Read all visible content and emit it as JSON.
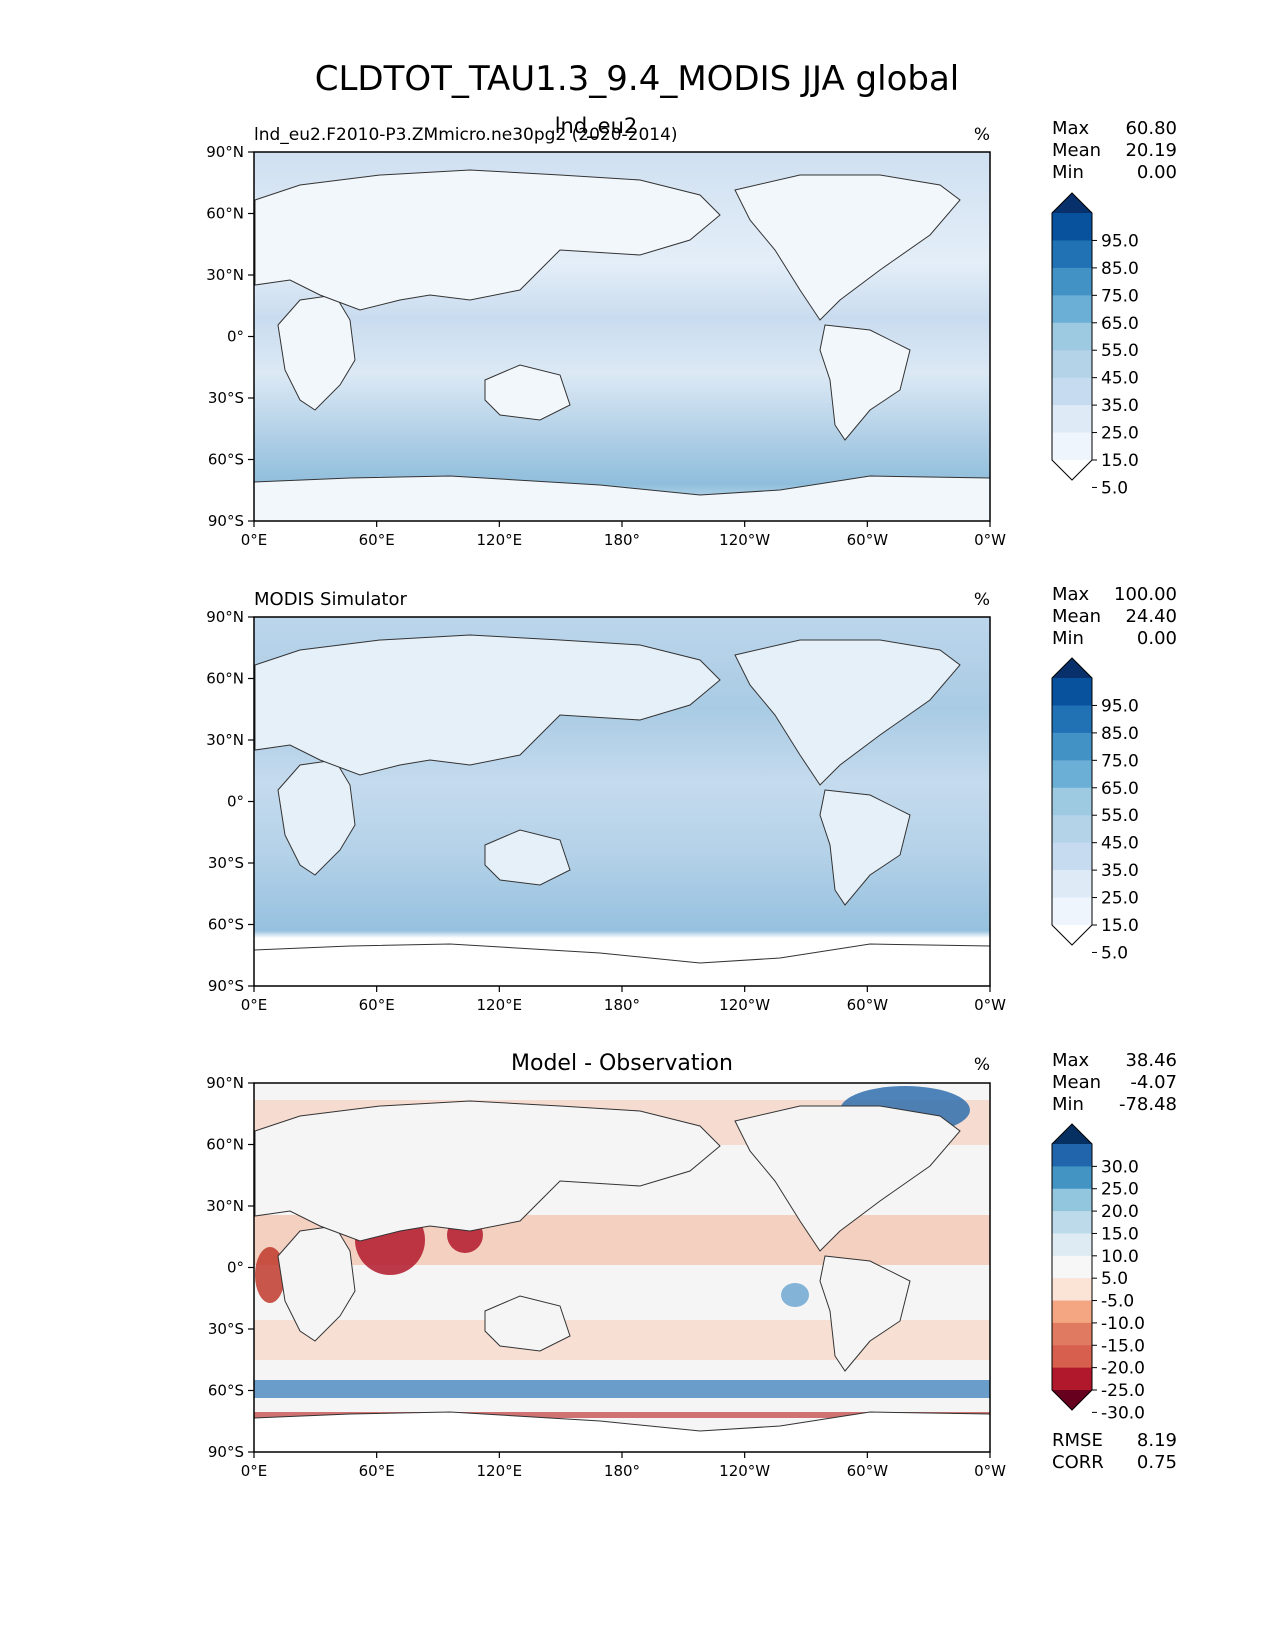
{
  "title": "CLDTOT_TAU1.3_9.4_MODIS JJA global",
  "colors": {
    "ocean_fill_light": "#eef4fa",
    "land_fill": "#f7fbff",
    "coast_stroke": "#333333",
    "diff_background": "#f5f5f5"
  },
  "chart_data": [
    {
      "type": "heatmap",
      "panel": "test",
      "title_center": "lnd_eu2",
      "title_left": "lnd_eu2.F2010-P3.ZMmicro.ne30pg2 (2020-2014)",
      "units": "%",
      "stats": [
        {
          "label": "Max",
          "value": "60.80"
        },
        {
          "label": "Mean",
          "value": "20.19"
        },
        {
          "label": "Min",
          "value": "0.00"
        }
      ],
      "x_ticks": [
        "0°E",
        "60°E",
        "120°E",
        "180°",
        "120°W",
        "60°W",
        "0°W"
      ],
      "y_ticks": [
        "90°N",
        "60°N",
        "30°N",
        "0°",
        "30°S",
        "60°S",
        "90°S"
      ],
      "xlim": [
        0,
        360
      ],
      "ylim": [
        -90,
        90
      ],
      "colorbar": {
        "labels": [
          "95.0",
          "85.0",
          "75.0",
          "65.0",
          "55.0",
          "45.0",
          "35.0",
          "25.0",
          "15.0",
          "5.0"
        ],
        "colors": [
          "#08306b",
          "#08519c",
          "#2171b5",
          "#4292c6",
          "#6baed6",
          "#9ecae1",
          "#b4d3e9",
          "#c6dbef",
          "#deebf7",
          "#eef5fc",
          "#ffffff"
        ],
        "extend": "both"
      }
    },
    {
      "type": "heatmap",
      "panel": "reference",
      "title_left": "MODIS Simulator",
      "units": "%",
      "stats": [
        {
          "label": "Max",
          "value": "100.00"
        },
        {
          "label": "Mean",
          "value": "24.40"
        },
        {
          "label": "Min",
          "value": "0.00"
        }
      ],
      "x_ticks": [
        "0°E",
        "60°E",
        "120°E",
        "180°",
        "120°W",
        "60°W",
        "0°W"
      ],
      "y_ticks": [
        "90°N",
        "60°N",
        "30°N",
        "0°",
        "30°S",
        "60°S",
        "90°S"
      ],
      "xlim": [
        0,
        360
      ],
      "ylim": [
        -90,
        90
      ],
      "colorbar": {
        "labels": [
          "95.0",
          "85.0",
          "75.0",
          "65.0",
          "55.0",
          "45.0",
          "35.0",
          "25.0",
          "15.0",
          "5.0"
        ],
        "colors": [
          "#08306b",
          "#08519c",
          "#2171b5",
          "#4292c6",
          "#6baed6",
          "#9ecae1",
          "#b4d3e9",
          "#c6dbef",
          "#deebf7",
          "#eef5fc",
          "#ffffff"
        ],
        "extend": "both"
      }
    },
    {
      "type": "heatmap",
      "panel": "difference",
      "title_center": "Model - Observation",
      "units": "%",
      "stats": [
        {
          "label": "Max",
          "value": "38.46"
        },
        {
          "label": "Mean",
          "value": "-4.07"
        },
        {
          "label": "Min",
          "value": "-78.48"
        }
      ],
      "bottom_stats": [
        {
          "label": "RMSE",
          "value": "8.19"
        },
        {
          "label": "CORR",
          "value": "0.75"
        }
      ],
      "x_ticks": [
        "0°E",
        "60°E",
        "120°E",
        "180°",
        "120°W",
        "60°W",
        "0°W"
      ],
      "y_ticks": [
        "90°N",
        "60°N",
        "30°N",
        "0°",
        "30°S",
        "60°S",
        "90°S"
      ],
      "xlim": [
        0,
        360
      ],
      "ylim": [
        -90,
        90
      ],
      "colorbar": {
        "labels": [
          "30.0",
          "25.0",
          "20.0",
          "15.0",
          "10.0",
          "5.0",
          "-5.0",
          "-10.0",
          "-15.0",
          "-20.0",
          "-25.0",
          "-30.0"
        ],
        "colors": [
          "#053061",
          "#2166ac",
          "#4393c3",
          "#92c5de",
          "#bcdaea",
          "#deebf2",
          "#f7f7f7",
          "#fbe3d6",
          "#f4a582",
          "#e07b62",
          "#d6604d",
          "#b2182b",
          "#67001f"
        ],
        "extend": "both"
      }
    }
  ]
}
